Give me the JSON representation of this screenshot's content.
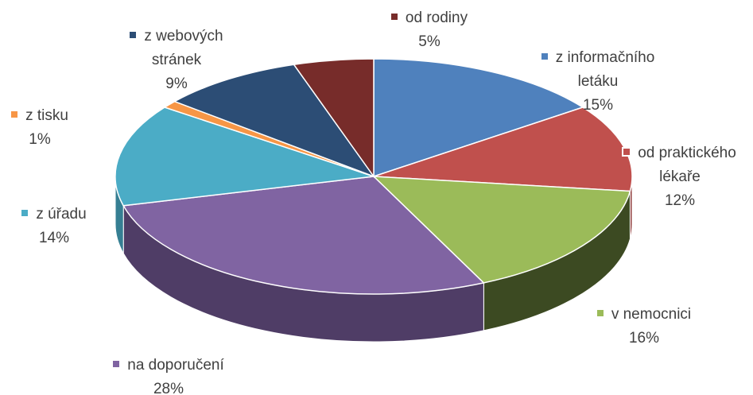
{
  "chart_data": {
    "type": "pie3d",
    "categories": [
      "z informačního letáku",
      "od praktického lékaře",
      "v nemocnici",
      "na doporučení",
      "z úřadu",
      "z tisku",
      "z webových stránek",
      "od rodiny"
    ],
    "values": [
      15,
      12,
      16,
      28,
      14,
      1,
      9,
      5
    ],
    "colors": [
      "#4f81bd",
      "#c0504d",
      "#9bbb59",
      "#8064a2",
      "#4bacc6",
      "#f79646",
      "#2c4d75",
      "#772c2a"
    ],
    "side_colors": [
      "#3a5f8c",
      "#8e3b39",
      "#3c4a22",
      "#4f3d66",
      "#367f93",
      "#b76f33",
      "#1d3350",
      "#531f1d"
    ]
  }
}
